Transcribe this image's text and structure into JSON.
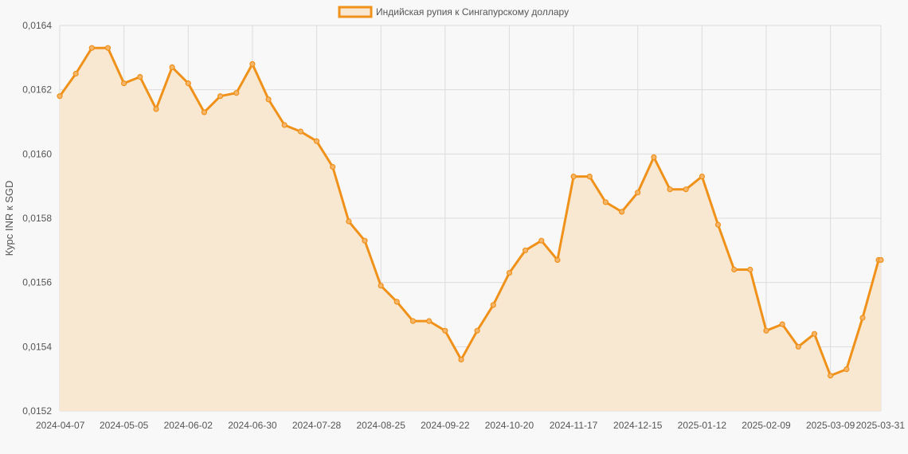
{
  "chart_data": {
    "type": "line",
    "title": "",
    "xlabel": "",
    "ylabel": "Курс INR к SGD",
    "ylim": [
      0.0152,
      0.0164
    ],
    "yticks": [
      "0,0152",
      "0,0154",
      "0,0156",
      "0,0158",
      "0,0160",
      "0,0162",
      "0,0164"
    ],
    "xtick_labels": [
      "2024-04-07",
      "2024-05-05",
      "2024-06-02",
      "2024-06-30",
      "2024-07-28",
      "2024-08-25",
      "2024-09-22",
      "2024-10-20",
      "2024-11-17",
      "2024-12-15",
      "2025-01-12",
      "2025-02-09",
      "2025-03-09",
      "2025-03-31"
    ],
    "grid": true,
    "legend_position": "top-center",
    "colors": {
      "line": "#f0911a",
      "fill": "#f8e8d2",
      "background": "#f8f8f8",
      "grid": "#dcdcdc"
    },
    "series": [
      {
        "name": "Индийская рупия к Сингапурскому доллару",
        "x": [
          "2024-04-07",
          "2024-04-14",
          "2024-04-21",
          "2024-04-28",
          "2024-05-05",
          "2024-05-12",
          "2024-05-19",
          "2024-05-26",
          "2024-06-02",
          "2024-06-09",
          "2024-06-16",
          "2024-06-23",
          "2024-06-30",
          "2024-07-07",
          "2024-07-14",
          "2024-07-21",
          "2024-07-28",
          "2024-08-04",
          "2024-08-11",
          "2024-08-18",
          "2024-08-25",
          "2024-09-01",
          "2024-09-08",
          "2024-09-15",
          "2024-09-22",
          "2024-09-29",
          "2024-10-06",
          "2024-10-13",
          "2024-10-20",
          "2024-10-27",
          "2024-11-03",
          "2024-11-10",
          "2024-11-17",
          "2024-11-24",
          "2024-12-01",
          "2024-12-08",
          "2024-12-15",
          "2024-12-22",
          "2024-12-29",
          "2025-01-05",
          "2025-01-12",
          "2025-01-19",
          "2025-01-26",
          "2025-02-02",
          "2025-02-09",
          "2025-02-16",
          "2025-02-23",
          "2025-03-02",
          "2025-03-09",
          "2025-03-16",
          "2025-03-23",
          "2025-03-30",
          "2025-03-31"
        ],
        "values": [
          0.01618,
          0.01625,
          0.01633,
          0.01633,
          0.01622,
          0.01624,
          0.01614,
          0.01627,
          0.01622,
          0.01613,
          0.01618,
          0.01619,
          0.01628,
          0.01617,
          0.01609,
          0.01607,
          0.01604,
          0.01596,
          0.01579,
          0.01573,
          0.01559,
          0.01554,
          0.01548,
          0.01548,
          0.01545,
          0.01536,
          0.01545,
          0.01553,
          0.01563,
          0.0157,
          0.01573,
          0.01567,
          0.01593,
          0.01593,
          0.01585,
          0.01582,
          0.01588,
          0.01599,
          0.01589,
          0.01589,
          0.01593,
          0.01578,
          0.01564,
          0.01564,
          0.01545,
          0.01547,
          0.0154,
          0.01544,
          0.01531,
          0.01533,
          0.01549,
          0.01567,
          0.01567
        ]
      }
    ]
  }
}
